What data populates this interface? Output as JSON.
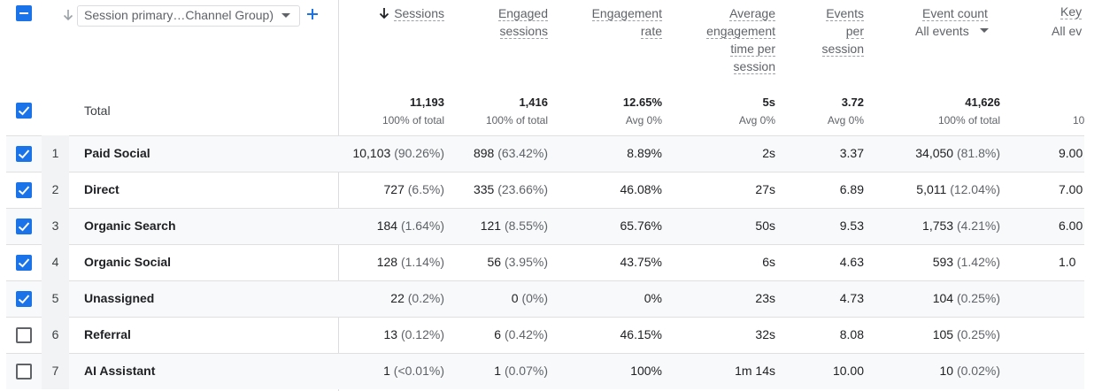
{
  "dimension": {
    "selector_label": "Session primary…Channel Group)",
    "total_label": "Total"
  },
  "columns": [
    {
      "key": "sessions",
      "lines": [
        "Sessions"
      ],
      "sorted": true
    },
    {
      "key": "engaged_sessions",
      "lines": [
        "Engaged",
        "sessions"
      ]
    },
    {
      "key": "engagement_rate",
      "lines": [
        "Engagement",
        "rate"
      ]
    },
    {
      "key": "avg_engagement_time",
      "lines": [
        "Average",
        "engagement",
        "time per",
        "session"
      ]
    },
    {
      "key": "events_per_session",
      "lines": [
        "Events",
        "per",
        "session"
      ]
    },
    {
      "key": "event_count",
      "lines": [
        "Event count"
      ],
      "filter": "All events"
    },
    {
      "key": "key_events",
      "lines": [
        "Key"
      ],
      "filter": "All ev"
    }
  ],
  "totals": {
    "sessions": {
      "value": "11,193",
      "sub": "100% of total"
    },
    "engaged_sessions": {
      "value": "1,416",
      "sub": "100% of total"
    },
    "engagement_rate": {
      "value": "12.65%",
      "sub": "Avg 0%"
    },
    "avg_engagement_time": {
      "value": "5s",
      "sub": "Avg 0%"
    },
    "events_per_session": {
      "value": "3.72",
      "sub": "Avg 0%"
    },
    "event_count": {
      "value": "41,626",
      "sub": "100% of total"
    },
    "key_events": {
      "value": "",
      "sub": "10"
    }
  },
  "rows": [
    {
      "index": "1",
      "name": "Paid Social",
      "checked": true,
      "sessions": "10,103",
      "sessions_pct": "(90.26%)",
      "engaged": "898",
      "engaged_pct": "(63.42%)",
      "rate": "8.89%",
      "time": "2s",
      "eps": "3.37",
      "events": "34,050",
      "events_pct": "(81.8%)",
      "key": "9.00"
    },
    {
      "index": "2",
      "name": "Direct",
      "checked": true,
      "sessions": "727",
      "sessions_pct": "(6.5%)",
      "engaged": "335",
      "engaged_pct": "(23.66%)",
      "rate": "46.08%",
      "time": "27s",
      "eps": "6.89",
      "events": "5,011",
      "events_pct": "(12.04%)",
      "key": "7.00"
    },
    {
      "index": "3",
      "name": "Organic Search",
      "checked": true,
      "sessions": "184",
      "sessions_pct": "(1.64%)",
      "engaged": "121",
      "engaged_pct": "(8.55%)",
      "rate": "65.76%",
      "time": "50s",
      "eps": "9.53",
      "events": "1,753",
      "events_pct": "(4.21%)",
      "key": "6.00"
    },
    {
      "index": "4",
      "name": "Organic Social",
      "checked": true,
      "sessions": "128",
      "sessions_pct": "(1.14%)",
      "engaged": "56",
      "engaged_pct": "(3.95%)",
      "rate": "43.75%",
      "time": "6s",
      "eps": "4.63",
      "events": "593",
      "events_pct": "(1.42%)",
      "key": "1.0"
    },
    {
      "index": "5",
      "name": "Unassigned",
      "checked": true,
      "sessions": "22",
      "sessions_pct": "(0.2%)",
      "engaged": "0",
      "engaged_pct": "(0%)",
      "rate": "0%",
      "time": "23s",
      "eps": "4.73",
      "events": "104",
      "events_pct": "(0.25%)",
      "key": ""
    },
    {
      "index": "6",
      "name": "Referral",
      "checked": false,
      "sessions": "13",
      "sessions_pct": "(0.12%)",
      "engaged": "6",
      "engaged_pct": "(0.42%)",
      "rate": "46.15%",
      "time": "32s",
      "eps": "8.08",
      "events": "105",
      "events_pct": "(0.25%)",
      "key": ""
    },
    {
      "index": "7",
      "name": "AI Assistant",
      "checked": false,
      "sessions": "1",
      "sessions_pct": "(<0.01%)",
      "engaged": "1",
      "engaged_pct": "(0.07%)",
      "rate": "100%",
      "time": "1m 14s",
      "eps": "10.00",
      "events": "10",
      "events_pct": "(0.02%)",
      "key": ""
    }
  ],
  "colors": {
    "accent": "#1a73e8",
    "text": "#202124",
    "muted": "#5f6368"
  },
  "icons": {
    "select_all": "indeterminate-checkbox-icon",
    "sort": "arrow-down-icon",
    "dropdown": "caret-down-icon",
    "add": "plus-icon"
  }
}
